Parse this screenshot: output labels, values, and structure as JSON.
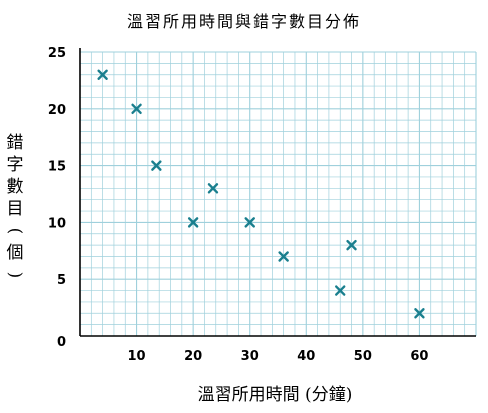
{
  "chart_data": {
    "type": "scatter",
    "title": "溫習所用時間與錯字數目分佈",
    "xlabel": "溫習所用時間 (分鐘)",
    "ylabel": "錯字數目(個)",
    "xlim": [
      0,
      70
    ],
    "ylim": [
      0,
      25
    ],
    "x_ticks": [
      10,
      20,
      30,
      40,
      50,
      60
    ],
    "y_ticks": [
      5,
      10,
      15,
      20,
      25
    ],
    "origin_label": "0",
    "grid": true,
    "marker": "x",
    "colors": {
      "marker": "#1a7f8e",
      "grid": "#9fd0dc",
      "axis": "#000000"
    },
    "points": [
      {
        "x": 4,
        "y": 23
      },
      {
        "x": 10,
        "y": 20
      },
      {
        "x": 13.5,
        "y": 15
      },
      {
        "x": 20,
        "y": 10
      },
      {
        "x": 23.5,
        "y": 13
      },
      {
        "x": 30,
        "y": 10
      },
      {
        "x": 36,
        "y": 7
      },
      {
        "x": 46,
        "y": 4
      },
      {
        "x": 48,
        "y": 8
      },
      {
        "x": 60,
        "y": 2
      }
    ]
  }
}
